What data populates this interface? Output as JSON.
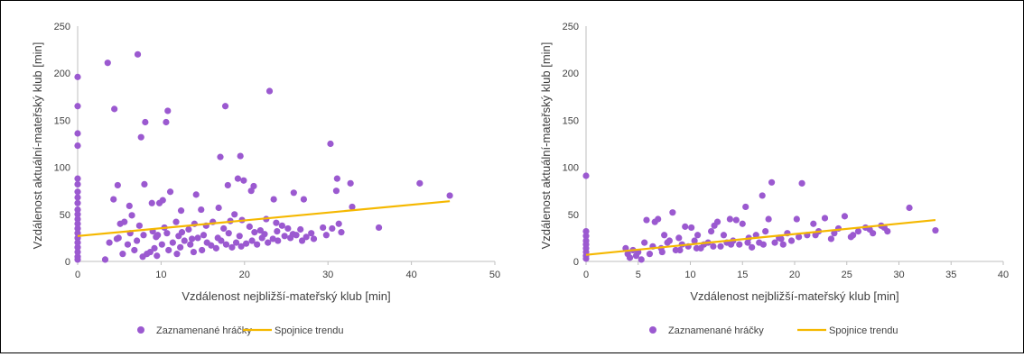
{
  "chart_data": [
    {
      "type": "scatter",
      "xlabel": "Vzdálenost nejbližší-mateřský klub [min]",
      "ylabel": "Vzdálenost aktuální-mateřský klub [min]",
      "xlim": [
        0,
        50
      ],
      "ylim": [
        0,
        250
      ],
      "xticks": [
        "0",
        "10",
        "20",
        "30",
        "40",
        "50"
      ],
      "yticks": [
        "0",
        "50",
        "100",
        "150",
        "200",
        "250"
      ],
      "legend": [
        "Zaznamenané hráčky",
        "Spojnice trendu"
      ],
      "legend_position": "bottom",
      "colors": {
        "points": "#9b59d0",
        "trend": "#f5b800"
      },
      "trend": {
        "x": [
          0,
          44.6
        ],
        "y": [
          27,
          64
        ]
      },
      "series": [
        {
          "name": "Zaznamenané hráčky",
          "points": [
            [
              0,
              196
            ],
            [
              0,
              165
            ],
            [
              0,
              136
            ],
            [
              0,
              123
            ],
            [
              0,
              88
            ],
            [
              0,
              82
            ],
            [
              0,
              74
            ],
            [
              0,
              68
            ],
            [
              0,
              62
            ],
            [
              0,
              55
            ],
            [
              0,
              50
            ],
            [
              0,
              45
            ],
            [
              0,
              40
            ],
            [
              0,
              35
            ],
            [
              0,
              30
            ],
            [
              0,
              25
            ],
            [
              0,
              20
            ],
            [
              0,
              15
            ],
            [
              0,
              10
            ],
            [
              0,
              5
            ],
            [
              0,
              2
            ],
            [
              3.6,
              211
            ],
            [
              7.2,
              220
            ],
            [
              4.4,
              162
            ],
            [
              8.1,
              148
            ],
            [
              10.6,
              148
            ],
            [
              10.8,
              160
            ],
            [
              7.6,
              132
            ],
            [
              17.7,
              165
            ],
            [
              23.0,
              181
            ],
            [
              17.1,
              111
            ],
            [
              19.5,
              112
            ],
            [
              30.3,
              125
            ],
            [
              4.8,
              81
            ],
            [
              8.0,
              82
            ],
            [
              4.3,
              66
            ],
            [
              6.2,
              59
            ],
            [
              8.9,
              62
            ],
            [
              9.8,
              62
            ],
            [
              10.2,
              65
            ],
            [
              11.1,
              74
            ],
            [
              12.4,
              54
            ],
            [
              14.2,
              71
            ],
            [
              14.8,
              55
            ],
            [
              16.9,
              57
            ],
            [
              18.0,
              81
            ],
            [
              18.8,
              50
            ],
            [
              19.2,
              88
            ],
            [
              19.9,
              86
            ],
            [
              20.8,
              75
            ],
            [
              21.1,
              80
            ],
            [
              23.5,
              66
            ],
            [
              25.9,
              73
            ],
            [
              27.1,
              66
            ],
            [
              31.0,
              75
            ],
            [
              31.1,
              88
            ],
            [
              32.7,
              83
            ],
            [
              32.9,
              58
            ],
            [
              41.0,
              83
            ],
            [
              44.6,
              70
            ],
            [
              5.1,
              40
            ],
            [
              5.6,
              42
            ],
            [
              6.5,
              49
            ],
            [
              7.4,
              38
            ],
            [
              9.0,
              32
            ],
            [
              9.6,
              28
            ],
            [
              10.4,
              36
            ],
            [
              11.8,
              42
            ],
            [
              12.5,
              31
            ],
            [
              13.3,
              34
            ],
            [
              14.0,
              40
            ],
            [
              15.4,
              38
            ],
            [
              16.2,
              42
            ],
            [
              17.5,
              35
            ],
            [
              18.3,
              43
            ],
            [
              19.7,
              44
            ],
            [
              20.6,
              37
            ],
            [
              21.9,
              33
            ],
            [
              22.6,
              45
            ],
            [
              23.8,
              41
            ],
            [
              24.5,
              38
            ],
            [
              25.2,
              35
            ],
            [
              26.7,
              34
            ],
            [
              28.0,
              30
            ],
            [
              29.4,
              36
            ],
            [
              30.5,
              35
            ],
            [
              31.3,
              40
            ],
            [
              31.6,
              31
            ],
            [
              36.1,
              36
            ],
            [
              3.3,
              2
            ],
            [
              3.8,
              20
            ],
            [
              4.9,
              25
            ],
            [
              5.4,
              8
            ],
            [
              6.0,
              18
            ],
            [
              6.8,
              12
            ],
            [
              7.1,
              22
            ],
            [
              7.8,
              5
            ],
            [
              8.3,
              8
            ],
            [
              8.7,
              10
            ],
            [
              9.2,
              14
            ],
            [
              9.5,
              6
            ],
            [
              10.1,
              18
            ],
            [
              10.9,
              12
            ],
            [
              11.4,
              20
            ],
            [
              11.9,
              8
            ],
            [
              12.3,
              15
            ],
            [
              12.8,
              22
            ],
            [
              13.5,
              18
            ],
            [
              13.9,
              10
            ],
            [
              14.4,
              25
            ],
            [
              14.9,
              12
            ],
            [
              15.5,
              20
            ],
            [
              16.0,
              17
            ],
            [
              16.6,
              14
            ],
            [
              17.2,
              22
            ],
            [
              17.8,
              18
            ],
            [
              18.5,
              15
            ],
            [
              19.0,
              20
            ],
            [
              19.6,
              16
            ],
            [
              20.2,
              19
            ],
            [
              20.9,
              22
            ],
            [
              21.5,
              18
            ],
            [
              22.1,
              25
            ],
            [
              22.8,
              20
            ],
            [
              23.4,
              24
            ],
            [
              24.0,
              22
            ],
            [
              24.8,
              27
            ],
            [
              25.5,
              25
            ],
            [
              26.2,
              28
            ],
            [
              26.9,
              22
            ],
            [
              27.4,
              26
            ],
            [
              28.3,
              24
            ],
            [
              29.8,
              28
            ],
            [
              4.7,
              24
            ],
            [
              6.3,
              30
            ],
            [
              7.9,
              28
            ],
            [
              9.4,
              26
            ],
            [
              10.7,
              30
            ],
            [
              12.1,
              27
            ],
            [
              13.7,
              24
            ],
            [
              15.1,
              28
            ],
            [
              16.8,
              25
            ],
            [
              18.1,
              30
            ],
            [
              19.4,
              27
            ],
            [
              21.2,
              31
            ],
            [
              22.4,
              29
            ],
            [
              23.9,
              32
            ],
            [
              25.8,
              29
            ]
          ]
        }
      ]
    },
    {
      "type": "scatter",
      "xlabel": "Vzdálenost nejbližší-mateřský klub [min]",
      "ylabel": "Vzdálenost aktuální-mateřský klub [min]",
      "xlim": [
        0,
        40
      ],
      "ylim": [
        0,
        250
      ],
      "xticks": [
        "0",
        "5",
        "10",
        "15",
        "20",
        "25",
        "30",
        "35",
        "40"
      ],
      "yticks": [
        "0",
        "50",
        "100",
        "150",
        "200",
        "250"
      ],
      "legend": [
        "Zaznamenané hráčky",
        "Spojnice trendu"
      ],
      "legend_position": "bottom",
      "colors": {
        "points": "#9b59d0",
        "trend": "#f5b800"
      },
      "trend": {
        "x": [
          0,
          33.5
        ],
        "y": [
          7,
          44
        ]
      },
      "series": [
        {
          "name": "Zaznamenané hráčky",
          "points": [
            [
              0,
              91
            ],
            [
              0,
              32
            ],
            [
              0,
              27
            ],
            [
              0,
              22
            ],
            [
              0,
              18
            ],
            [
              0,
              14
            ],
            [
              0,
              10
            ],
            [
              0,
              6
            ],
            [
              0,
              3
            ],
            [
              3.8,
              14
            ],
            [
              4.0,
              8
            ],
            [
              4.2,
              4
            ],
            [
              4.5,
              12
            ],
            [
              4.8,
              6
            ],
            [
              5.0,
              10
            ],
            [
              5.3,
              2
            ],
            [
              5.6,
              20
            ],
            [
              5.8,
              44
            ],
            [
              6.1,
              8
            ],
            [
              6.4,
              16
            ],
            [
              6.6,
              42
            ],
            [
              6.9,
              45
            ],
            [
              7.2,
              14
            ],
            [
              7.5,
              28
            ],
            [
              7.8,
              20
            ],
            [
              8.0,
              22
            ],
            [
              8.3,
              52
            ],
            [
              8.6,
              12
            ],
            [
              8.9,
              25
            ],
            [
              9.2,
              18
            ],
            [
              9.5,
              37
            ],
            [
              9.8,
              16
            ],
            [
              10.1,
              36
            ],
            [
              10.4,
              22
            ],
            [
              10.7,
              28
            ],
            [
              11.0,
              14
            ],
            [
              11.3,
              18
            ],
            [
              11.7,
              20
            ],
            [
              12.0,
              32
            ],
            [
              12.3,
              38
            ],
            [
              12.6,
              42
            ],
            [
              12.9,
              16
            ],
            [
              13.2,
              28
            ],
            [
              13.5,
              20
            ],
            [
              13.8,
              45
            ],
            [
              14.1,
              22
            ],
            [
              14.4,
              44
            ],
            [
              14.7,
              18
            ],
            [
              15.0,
              40
            ],
            [
              15.3,
              58
            ],
            [
              15.6,
              25
            ],
            [
              15.9,
              15
            ],
            [
              16.3,
              28
            ],
            [
              16.6,
              20
            ],
            [
              16.9,
              70
            ],
            [
              17.2,
              32
            ],
            [
              17.5,
              45
            ],
            [
              17.8,
              84
            ],
            [
              18.1,
              20
            ],
            [
              18.5,
              25
            ],
            [
              18.9,
              18
            ],
            [
              19.3,
              30
            ],
            [
              19.7,
              22
            ],
            [
              20.2,
              45
            ],
            [
              20.7,
              83
            ],
            [
              21.2,
              28
            ],
            [
              21.8,
              40
            ],
            [
              22.3,
              32
            ],
            [
              22.9,
              46
            ],
            [
              23.5,
              24
            ],
            [
              24.2,
              35
            ],
            [
              24.8,
              48
            ],
            [
              25.4,
              26
            ],
            [
              26.1,
              32
            ],
            [
              26.8,
              36
            ],
            [
              27.5,
              30
            ],
            [
              28.3,
              38
            ],
            [
              28.9,
              32
            ],
            [
              31.0,
              57
            ],
            [
              33.5,
              33
            ],
            [
              7.3,
              10
            ],
            [
              9.0,
              12
            ],
            [
              10.6,
              14
            ],
            [
              12.2,
              16
            ],
            [
              13.9,
              18
            ],
            [
              15.5,
              20
            ],
            [
              17.0,
              18
            ],
            [
              18.7,
              24
            ],
            [
              20.4,
              26
            ],
            [
              22.0,
              28
            ],
            [
              23.8,
              30
            ],
            [
              25.6,
              28
            ],
            [
              27.2,
              34
            ],
            [
              28.6,
              36
            ]
          ]
        }
      ]
    }
  ]
}
